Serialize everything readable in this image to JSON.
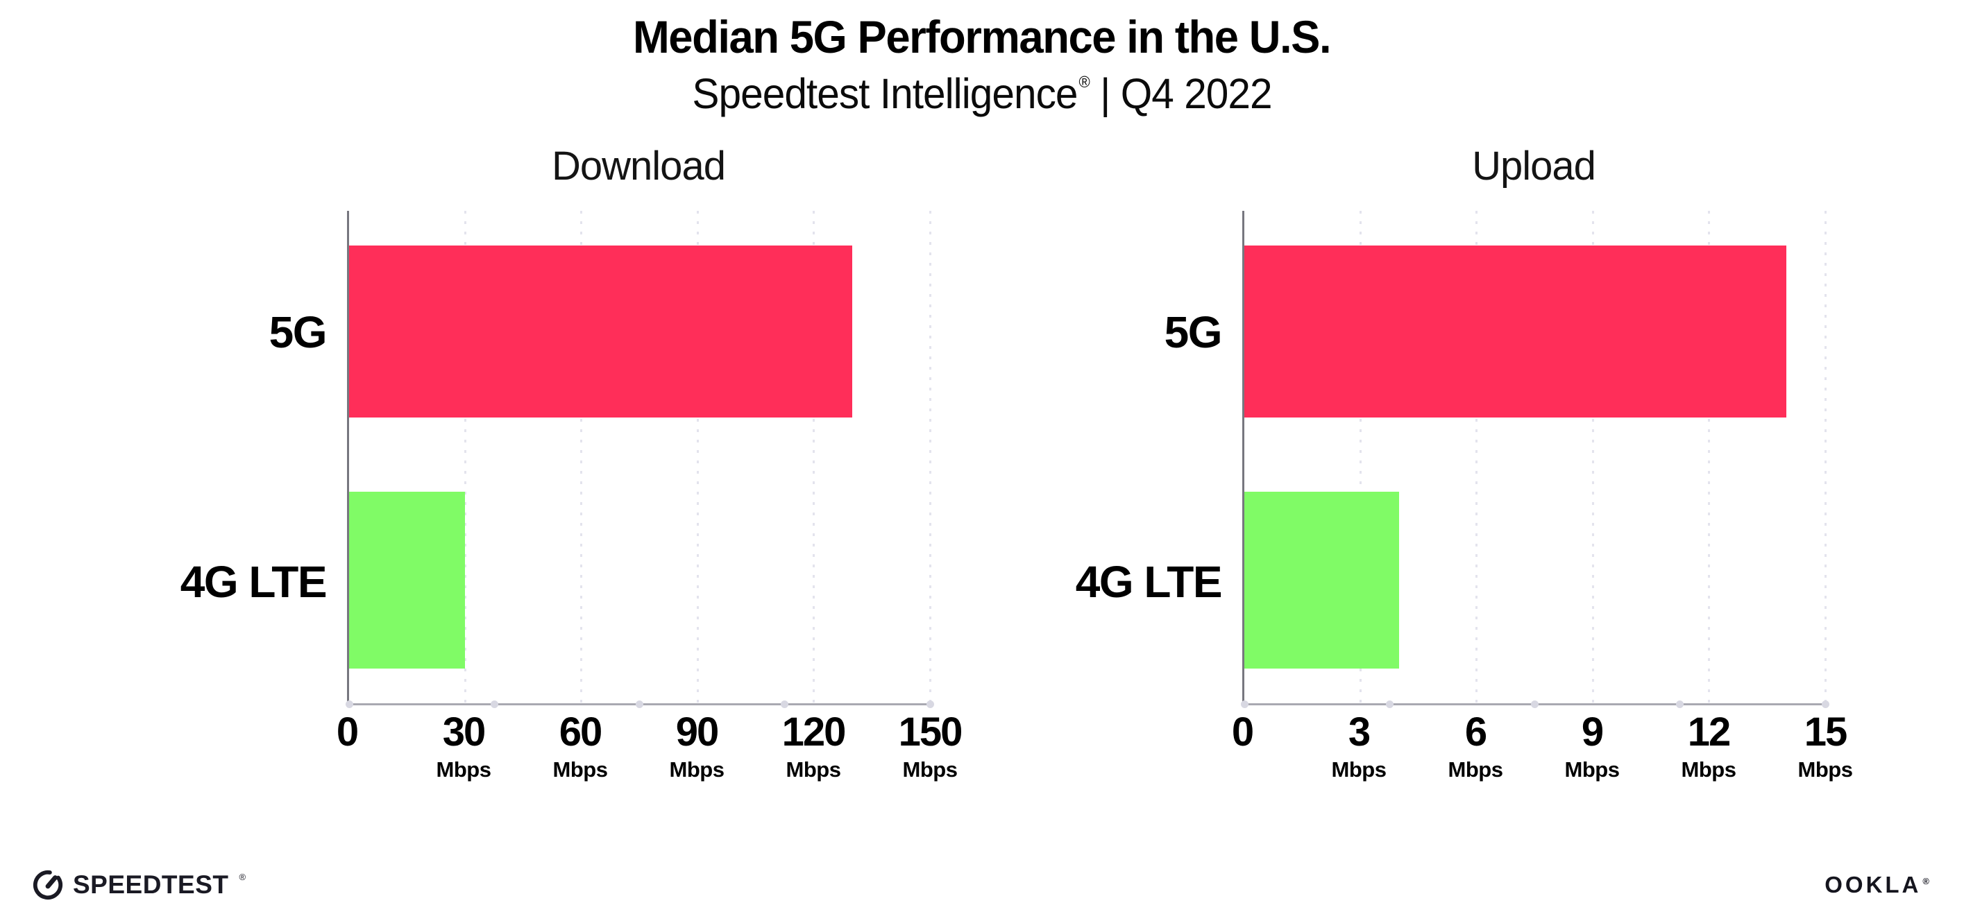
{
  "header": {
    "title": "Median 5G Performance in the U.S.",
    "subtitle_brand": "Speedtest Intelligence",
    "subtitle_reg": "®",
    "subtitle_rest": "| Q4 2022"
  },
  "colors": {
    "bar_5g": "#ff2e59",
    "bar_4g_lte": "#80fb66",
    "gridline": "#e3e3ed",
    "y_axis": "#77777f",
    "x_axis": "#a9a9b1",
    "text": "#000000",
    "logo": "#1a1a24"
  },
  "chart_data": [
    {
      "type": "bar",
      "orientation": "horizontal",
      "title": "Download",
      "categories": [
        "5G",
        "4G LTE"
      ],
      "values": [
        130,
        30
      ],
      "unit": "Mbps",
      "xlim": [
        0,
        150
      ],
      "xticks": [
        0,
        30,
        60,
        90,
        120,
        150
      ],
      "bar_colors": [
        "#ff2e59",
        "#80fb66"
      ],
      "grid": "dotted-vertical",
      "legend": "none"
    },
    {
      "type": "bar",
      "orientation": "horizontal",
      "title": "Upload",
      "categories": [
        "5G",
        "4G LTE"
      ],
      "values": [
        14,
        4
      ],
      "unit": "Mbps",
      "xlim": [
        0,
        15
      ],
      "xticks": [
        0,
        3,
        6,
        9,
        12,
        15
      ],
      "bar_colors": [
        "#ff2e59",
        "#80fb66"
      ],
      "grid": "dotted-vertical",
      "legend": "none"
    }
  ],
  "footer": {
    "speedtest_label": "SPEEDTEST",
    "speedtest_mark": "®",
    "ookla_label": "OOKLA",
    "ookla_mark": "®"
  }
}
